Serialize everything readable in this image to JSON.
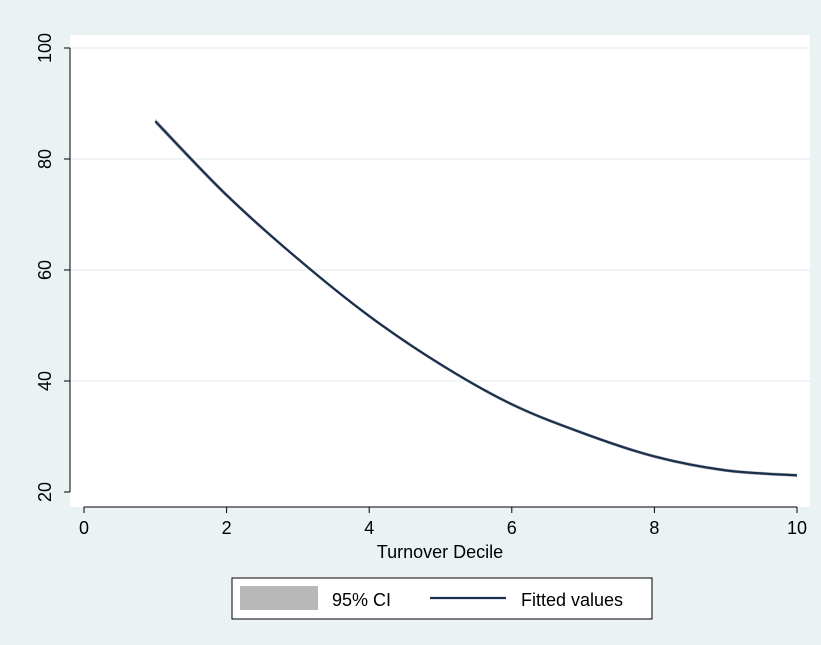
{
  "chart_data": {
    "type": "line",
    "title": "",
    "xlabel": "Turnover Decile",
    "ylabel": "",
    "xlim": [
      0,
      10
    ],
    "ylim": [
      20,
      100
    ],
    "x_ticks": [
      0,
      2,
      4,
      6,
      8,
      10
    ],
    "y_ticks": [
      20,
      40,
      60,
      80,
      100
    ],
    "grid": "horizontal",
    "legend_position": "bottom",
    "series": [
      {
        "name": "95% CI",
        "kind": "band",
        "color": "#b8b8b8",
        "x": [
          1,
          2,
          3,
          4,
          5,
          6,
          7,
          8,
          9,
          10
        ],
        "lower": [
          86.3,
          73.1,
          61.7,
          51.4,
          42.7,
          35.5,
          30.3,
          26.1,
          23.6,
          22.7
        ],
        "upper": [
          87.3,
          73.9,
          62.3,
          52.0,
          43.3,
          36.1,
          30.9,
          26.7,
          24.2,
          23.3
        ]
      },
      {
        "name": "Fitted values",
        "kind": "line",
        "color": "#1a2f4e",
        "x": [
          1,
          2,
          3,
          4,
          5,
          6,
          7,
          8,
          9,
          10
        ],
        "y": [
          86.8,
          73.5,
          62.0,
          51.7,
          43.0,
          35.8,
          30.6,
          26.4,
          23.9,
          23.0
        ]
      }
    ]
  },
  "colors": {
    "background": "#eaf2f3",
    "plot_area": "#ffffff",
    "gridline": "#eaf2f3"
  }
}
